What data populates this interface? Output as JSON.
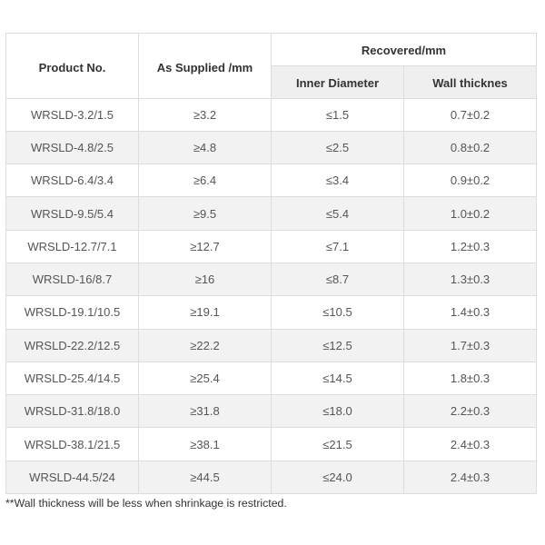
{
  "colors": {
    "page_background": "#ffffff",
    "border": "#dddddd",
    "striped_row_background": "#f2f2f2",
    "subheader_background": "#efefef",
    "header_text": "#333333",
    "body_text": "#555555",
    "footnote_text": "#333333"
  },
  "chart_data": {
    "type": "table",
    "columns": [
      "Product No.",
      "As Supplied /mm",
      "Recovered/mm - Inner Diameter",
      "Recovered/mm - Wall thicknes"
    ],
    "rows": [
      [
        "WRSLD-3.2/1.5",
        "≥3.2",
        "≤1.5",
        "0.7±0.2"
      ],
      [
        "WRSLD-4.8/2.5",
        "≥4.8",
        "≤2.5",
        "0.8±0.2"
      ],
      [
        "WRSLD-6.4/3.4",
        "≥6.4",
        "≤3.4",
        "0.9±0.2"
      ],
      [
        "WRSLD-9.5/5.4",
        "≥9.5",
        "≤5.4",
        "1.0±0.2"
      ],
      [
        "WRSLD-12.7/7.1",
        "≥12.7",
        "≤7.1",
        "1.2±0.3"
      ],
      [
        "WRSLD-16/8.7",
        "≥16",
        "≤8.7",
        "1.3±0.3"
      ],
      [
        "WRSLD-19.1/10.5",
        "≥19.1",
        "≤10.5",
        "1.4±0.3"
      ],
      [
        "WRSLD-22.2/12.5",
        "≥22.2",
        "≤12.5",
        "1.7±0.3"
      ],
      [
        "WRSLD-25.4/14.5",
        "≥25.4",
        "≤14.5",
        "1.8±0.3"
      ],
      [
        "WRSLD-31.8/18.0",
        "≥31.8",
        "≤18.0",
        "2.2±0.3"
      ],
      [
        "WRSLD-38.1/21.5",
        "≥38.1",
        "≤21.5",
        "2.4±0.3"
      ],
      [
        "WRSLD-44.5/24",
        "≥44.5",
        "≤24.0",
        "2.4±0.3"
      ]
    ]
  },
  "table": {
    "header": {
      "product_no": "Product No.",
      "as_supplied": "As Supplied /mm",
      "recovered": "Recovered/mm",
      "inner_diameter": "Inner Diameter",
      "wall_thickness": "Wall thicknes"
    },
    "rows": [
      {
        "product": "WRSLD-3.2/1.5",
        "supplied": "≥3.2",
        "inner": "≤1.5",
        "wall": "0.7±0.2"
      },
      {
        "product": "WRSLD-4.8/2.5",
        "supplied": "≥4.8",
        "inner": "≤2.5",
        "wall": "0.8±0.2"
      },
      {
        "product": "WRSLD-6.4/3.4",
        "supplied": "≥6.4",
        "inner": "≤3.4",
        "wall": "0.9±0.2"
      },
      {
        "product": "WRSLD-9.5/5.4",
        "supplied": "≥9.5",
        "inner": "≤5.4",
        "wall": "1.0±0.2"
      },
      {
        "product": "WRSLD-12.7/7.1",
        "supplied": "≥12.7",
        "inner": "≤7.1",
        "wall": "1.2±0.3"
      },
      {
        "product": "WRSLD-16/8.7",
        "supplied": "≥16",
        "inner": "≤8.7",
        "wall": "1.3±0.3"
      },
      {
        "product": "WRSLD-19.1/10.5",
        "supplied": "≥19.1",
        "inner": "≤10.5",
        "wall": "1.4±0.3"
      },
      {
        "product": "WRSLD-22.2/12.5",
        "supplied": "≥22.2",
        "inner": "≤12.5",
        "wall": "1.7±0.3"
      },
      {
        "product": "WRSLD-25.4/14.5",
        "supplied": "≥25.4",
        "inner": "≤14.5",
        "wall": "1.8±0.3"
      },
      {
        "product": "WRSLD-31.8/18.0",
        "supplied": "≥31.8",
        "inner": "≤18.0",
        "wall": "2.2±0.3"
      },
      {
        "product": "WRSLD-38.1/21.5",
        "supplied": "≥38.1",
        "inner": "≤21.5",
        "wall": "2.4±0.3"
      },
      {
        "product": "WRSLD-44.5/24",
        "supplied": "≥44.5",
        "inner": "≤24.0",
        "wall": "2.4±0.3"
      }
    ]
  },
  "footnote": {
    "text": "**Wall thickness will be less when shrinkage is restricted."
  }
}
